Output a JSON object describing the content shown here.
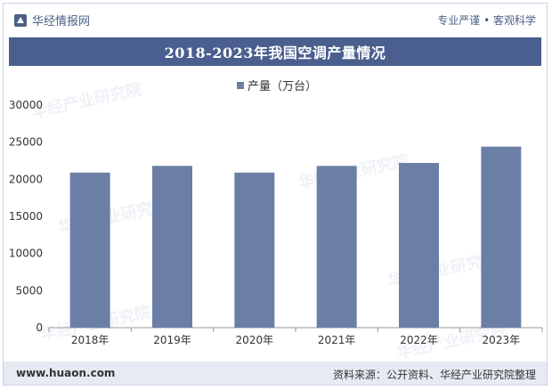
{
  "header": {
    "brand": "华经情报网",
    "slogan": "专业严谨 • 客观科学"
  },
  "title": "2018-2023年我国空调产量情况",
  "footer": {
    "url": "www.huaon.com",
    "source": "资料来源：公开资料、华经产业研究院整理"
  },
  "watermark": "华经产业研究院",
  "colors": {
    "bar": "#6b7fa6",
    "title_bg": "#4a5f8e",
    "brand": "#4b5f86"
  },
  "chart_data": {
    "type": "bar",
    "categories": [
      "2018年",
      "2019年",
      "2020年",
      "2021年",
      "2022年",
      "2023年"
    ],
    "series": [
      {
        "name": "产量（万台）",
        "values": [
          20900,
          21800,
          20900,
          21800,
          22200,
          24400
        ]
      }
    ],
    "ylim": [
      0,
      30000
    ],
    "yticks": [
      0,
      5000,
      10000,
      15000,
      20000,
      25000,
      30000
    ],
    "legend": "top-center",
    "grid": false
  }
}
